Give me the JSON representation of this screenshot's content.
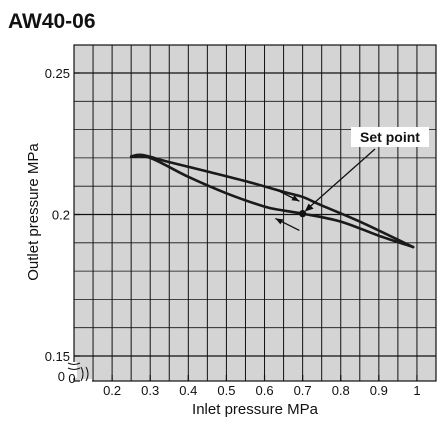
{
  "chart_data": {
    "type": "line",
    "title": "AW40-06",
    "xlabel": "Inlet pressure  MPa",
    "ylabel": "Outlet pressure  MPa",
    "xlim": [
      0.1,
      1.05
    ],
    "ylim": [
      0.15,
      0.25
    ],
    "x_ticks": [
      "0.2",
      "0.3",
      "0.4",
      "0.5",
      "0.6",
      "0.7",
      "0.8",
      "0.9",
      "1"
    ],
    "x_tick_values": [
      0.2,
      0.3,
      0.4,
      0.5,
      0.6,
      0.7,
      0.8,
      0.9,
      1.0
    ],
    "y_ticks": [
      "0.15",
      "0.2",
      "0.25"
    ],
    "y_tick_values": [
      0.15,
      0.2,
      0.25
    ],
    "x_origin_label": "0",
    "y_origin_label": "0",
    "grid": true,
    "background_color": "#d4d4d4",
    "line_color": "#1a1a1a",
    "series": [
      {
        "values_x": [
          0.25,
          0.28,
          0.35,
          0.45,
          0.55,
          0.65,
          0.7,
          0.75,
          0.85,
          0.99
        ],
        "values_y": [
          0.2205,
          0.221,
          0.2185,
          0.2152,
          0.2118,
          0.208,
          0.2062,
          0.2032,
          0.1975,
          0.1885
        ]
      },
      {
        "values_x": [
          0.25,
          0.3,
          0.4,
          0.5,
          0.6,
          0.65,
          0.7,
          0.8,
          0.9,
          0.99
        ],
        "values_y": [
          0.2205,
          0.22,
          0.2133,
          0.2075,
          0.2028,
          0.2014,
          0.2003,
          0.1975,
          0.1925,
          0.1885
        ]
      }
    ],
    "annotations": [
      {
        "text": "Set point",
        "x": 0.7,
        "y": 0.2003
      }
    ],
    "arrows": [
      {
        "direction": "right",
        "x": 0.66,
        "y": 0.2068
      },
      {
        "direction": "left",
        "x": 0.66,
        "y": 0.1965
      }
    ]
  }
}
